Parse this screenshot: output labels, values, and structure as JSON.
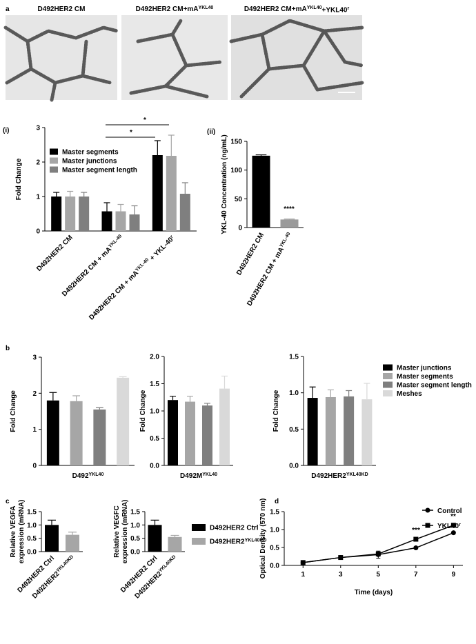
{
  "panel_labels": [
    "a",
    "(i)",
    "(ii)",
    "b",
    "c",
    "d"
  ],
  "panel_a": {
    "titles": [
      [
        "D492HER2 CM"
      ],
      [
        "D492HER2 CM+mA",
        "YKL40"
      ],
      [
        "D492HER2 CM+mA",
        "YKL40",
        "+YKL40",
        "r"
      ]
    ]
  },
  "chart_data": [
    {
      "type": "bar",
      "ylabel": "Fold Change",
      "categories": [
        [
          "D492HER2 CM"
        ],
        [
          "D492HER2 CM + mA",
          "YKL-40"
        ],
        [
          "D492HER2 CM + mA",
          "YKL-40",
          " + YKL-40",
          "r"
        ]
      ],
      "series": [
        {
          "name": "Master segments",
          "color": "#000000",
          "values": [
            1.0,
            0.57,
            2.2
          ],
          "errors": [
            0.12,
            0.25,
            0.42
          ]
        },
        {
          "name": "Master junctions",
          "color": "#a6a6a6",
          "values": [
            1.0,
            0.57,
            2.18
          ],
          "errors": [
            0.15,
            0.2,
            0.6
          ]
        },
        {
          "name": "Master segment length",
          "color": "#7f7f7f",
          "values": [
            1.0,
            0.48,
            1.08
          ],
          "errors": [
            0.12,
            0.25,
            0.32
          ]
        }
      ],
      "ylim": [
        0,
        3
      ],
      "yticks": [
        0,
        1,
        2,
        3
      ],
      "annotations": [
        "*",
        "*"
      ]
    },
    {
      "type": "bar",
      "ylabel": "YKL-40 Concentration (ng/mL)",
      "categories": [
        [
          "D492HER2 CM"
        ],
        [
          "D492HER2 CM + mA",
          "YKL-40"
        ]
      ],
      "values": [
        125,
        14
      ],
      "errors": [
        1.5,
        0.8
      ],
      "colors": [
        "#000000",
        "#9a9a9a"
      ],
      "ylim": [
        0,
        150
      ],
      "yticks": [
        0,
        50,
        100,
        150
      ],
      "annotations": [
        "****"
      ]
    },
    {
      "type": "bar",
      "ylabel": "Fold Change",
      "xlabel": [
        "D492",
        "YKL40"
      ],
      "values": [
        1.8,
        1.78,
        1.55,
        2.43
      ],
      "errors": [
        0.22,
        0.15,
        0.05,
        0.03
      ],
      "colors": [
        "#000000",
        "#a6a6a6",
        "#7f7f7f",
        "#d9d9d9"
      ],
      "ylim": [
        0,
        3
      ],
      "yticks": [
        0,
        1,
        2,
        3
      ]
    },
    {
      "type": "bar",
      "ylabel": "Fold Change",
      "xlabel": [
        "D492M",
        "YKL40"
      ],
      "values": [
        1.2,
        1.17,
        1.1,
        1.41
      ],
      "errors": [
        0.07,
        0.1,
        0.04,
        0.23
      ],
      "colors": [
        "#000000",
        "#a6a6a6",
        "#7f7f7f",
        "#d9d9d9"
      ],
      "ylim": [
        0,
        2
      ],
      "yticks": [
        {
          "value": 0,
          "label": "0.0"
        },
        0.5,
        {
          "value": 1,
          "label": "1.0"
        },
        1.5,
        {
          "value": 2,
          "label": "2.0"
        }
      ]
    },
    {
      "type": "bar",
      "ylabel": "Fold Change",
      "xlabel": [
        "D492HER2",
        "YKL40KD"
      ],
      "values": [
        0.93,
        0.94,
        0.95,
        0.91
      ],
      "errors": [
        0.15,
        0.1,
        0.08,
        0.22
      ],
      "colors": [
        "#000000",
        "#a6a6a6",
        "#7f7f7f",
        "#d9d9d9"
      ],
      "ylim": [
        0,
        1.5
      ],
      "yticks": [
        {
          "value": 0,
          "label": "0.0"
        },
        0.5,
        {
          "value": 1,
          "label": "1.0"
        },
        1.5
      ],
      "legend": [
        {
          "name": "Master junctions",
          "color": "#000000"
        },
        {
          "name": "Master segments",
          "color": "#a6a6a6"
        },
        {
          "name": "Master segment length",
          "color": "#7f7f7f"
        },
        {
          "name": "Meshes",
          "color": "#d9d9d9"
        }
      ]
    },
    {
      "type": "bar",
      "ylabel_lines": [
        "Relative VEGFA",
        "expression (mRNA)"
      ],
      "categories": [
        [
          "D492HER2 Ctrl"
        ],
        [
          "D492HER2",
          "YKL40KD"
        ]
      ],
      "values": [
        1.0,
        0.63
      ],
      "errors": [
        0.18,
        0.1
      ],
      "colors": [
        "#000000",
        "#a6a6a6"
      ],
      "ylim": [
        0,
        1.5
      ],
      "yticks": [
        {
          "value": 0,
          "label": "0.0"
        },
        0.5,
        {
          "value": 1,
          "label": "1.0"
        },
        1.5
      ]
    },
    {
      "type": "bar",
      "ylabel_lines": [
        "Relative VEGFC",
        "expression (mRNA)"
      ],
      "categories": [
        [
          "D492HER2 Ctrl"
        ],
        [
          "D492HER2",
          "YKL40KD"
        ]
      ],
      "values": [
        1.0,
        0.55
      ],
      "errors": [
        0.18,
        0.06
      ],
      "colors": [
        "#000000",
        "#a6a6a6"
      ],
      "ylim": [
        0,
        1.5
      ],
      "yticks": [
        {
          "value": 0,
          "label": "0.0"
        },
        0.5,
        {
          "value": 1,
          "label": "1.0"
        },
        1.5
      ],
      "legend": [
        {
          "name": [
            "D492HER2 Ctrl"
          ],
          "color": "#000000"
        },
        {
          "name": [
            "D492HER2",
            "YKL40KD"
          ],
          "color": "#a6a6a6"
        }
      ]
    },
    {
      "type": "line",
      "ylabel": "Optical Density (570 nm)",
      "xlabel": "Time (days)",
      "x": [
        1,
        3,
        5,
        7,
        9
      ],
      "xlim": [
        0,
        9.5
      ],
      "xticks": [
        1,
        3,
        5,
        7,
        9
      ],
      "ylim": [
        0,
        1.5
      ],
      "yticks": [
        {
          "value": 0,
          "label": "0.0"
        },
        0.5,
        {
          "value": 1,
          "label": "1.0"
        },
        1.5
      ],
      "series": [
        {
          "name": [
            "Control"
          ],
          "color": "#000000",
          "marker": "circle",
          "values": [
            0.08,
            0.22,
            0.3,
            0.49,
            0.91
          ],
          "errors": [
            0.01,
            0.02,
            0.1,
            0.03,
            0.03
          ]
        },
        {
          "name": [
            "YKL40",
            "r"
          ],
          "color": "#000000",
          "marker": "square",
          "values": [
            0.08,
            0.22,
            0.32,
            0.73,
            1.12
          ],
          "errors": [
            0.01,
            0.01,
            0.03,
            0.02,
            0.02
          ]
        }
      ],
      "annotations": [
        "***",
        "**"
      ]
    }
  ]
}
